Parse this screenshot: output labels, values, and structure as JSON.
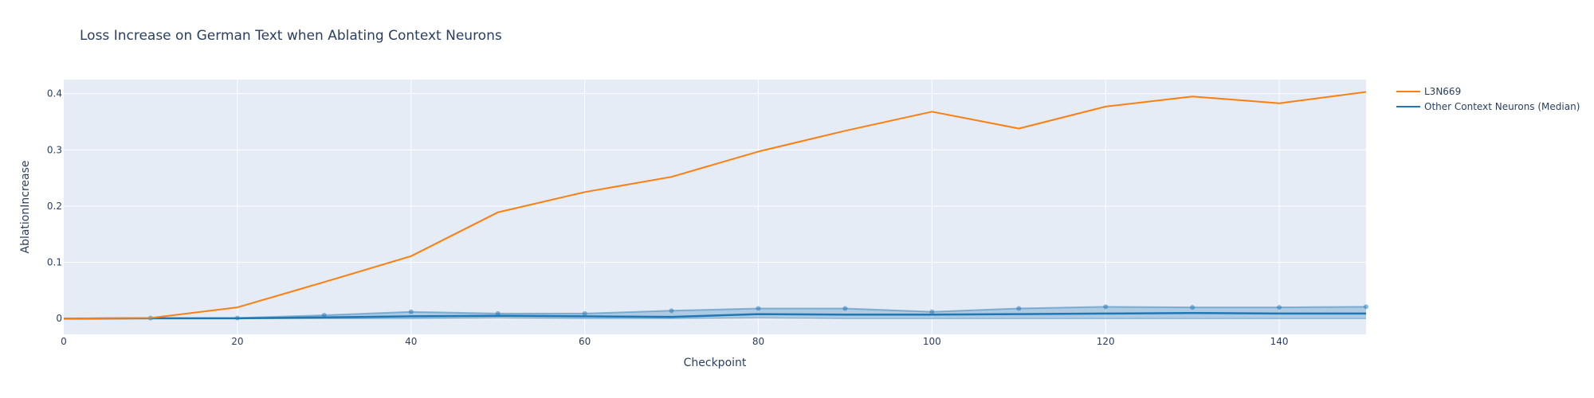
{
  "chart_data": {
    "type": "line",
    "title": "Loss Increase on German Text when Ablating Context Neurons",
    "xlabel": "Checkpoint",
    "ylabel": "AblationIncrease",
    "xlim": [
      0,
      150
    ],
    "ylim": [
      -0.028,
      0.425
    ],
    "x_ticks": [
      0,
      20,
      40,
      60,
      80,
      100,
      120,
      140
    ],
    "y_ticks": [
      0,
      0.1,
      0.2,
      0.3,
      0.4
    ],
    "y_tick_labels": [
      "0",
      "0.1",
      "0.2",
      "0.3",
      "0.4"
    ],
    "grid": true,
    "legend_position": "top-right",
    "colors": {
      "plot_bg": "#e5ecf6",
      "grid": "#ffffff",
      "text": "#2a3f5f",
      "l3n669": "#ff7f0e",
      "median": "#1f77b4",
      "band_fill": "#1f77b4",
      "band_line": "#1f77b4"
    },
    "x": [
      0,
      10,
      20,
      30,
      40,
      50,
      60,
      70,
      80,
      90,
      100,
      110,
      120,
      130,
      140,
      150
    ],
    "series": [
      {
        "name": "L3N669",
        "values": [
          0.0,
          0.001,
          0.02,
          0.065,
          0.111,
          0.189,
          0.225,
          0.252,
          0.297,
          0.334,
          0.368,
          0.338,
          0.377,
          0.395,
          0.383,
          0.403
        ]
      },
      {
        "name": "Other Context Neurons (Median)",
        "values": [
          0.0,
          0.0005,
          0.0005,
          0.002,
          0.004,
          0.005,
          0.004,
          0.003,
          0.008,
          0.007,
          0.007,
          0.008,
          0.009,
          0.01,
          0.009,
          0.009
        ]
      }
    ],
    "band": {
      "upper": [
        0.0,
        0.001,
        0.001,
        0.006,
        0.012,
        0.009,
        0.009,
        0.014,
        0.018,
        0.018,
        0.012,
        0.018,
        0.021,
        0.02,
        0.02,
        0.021
      ],
      "lower": [
        0.0,
        0.0,
        0.0,
        0.0,
        0.0,
        0.001,
        0.0,
        0.0,
        0.001,
        0.0,
        0.0,
        0.0,
        0.0,
        0.0,
        0.0,
        0.0
      ]
    }
  }
}
